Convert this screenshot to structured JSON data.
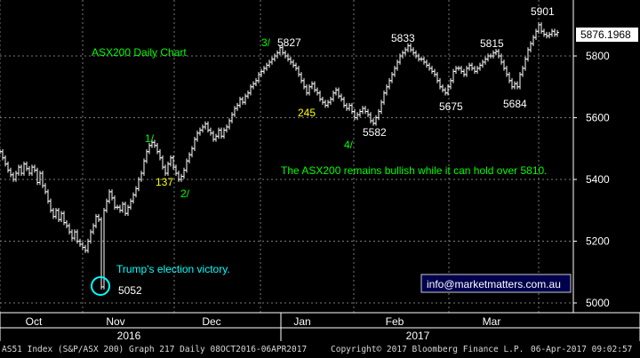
{
  "chart_data": {
    "type": "ohlc-bar",
    "title": "ASX200 Daily Chart",
    "ylim": [
      5000,
      5950
    ],
    "yticks": [
      5000,
      5200,
      5400,
      5600,
      5800
    ],
    "months": [
      "Oct",
      "Nov",
      "Dec",
      "Jan",
      "Feb",
      "Mar"
    ],
    "years": [
      "2016",
      "2017"
    ],
    "last_price": "5876.1968",
    "series": [
      {
        "name": "AS51 Index",
        "values": [
          [
            0,
            5490
          ],
          [
            3,
            5470
          ],
          [
            6,
            5450
          ],
          [
            9,
            5430
          ],
          [
            12,
            5415
          ],
          [
            15,
            5400
          ],
          [
            18,
            5420
          ],
          [
            21,
            5440
          ],
          [
            24,
            5420
          ],
          [
            27,
            5450
          ],
          [
            30,
            5435
          ],
          [
            33,
            5420
          ],
          [
            36,
            5440
          ],
          [
            39,
            5430
          ],
          [
            42,
            5390
          ],
          [
            45,
            5420
          ],
          [
            48,
            5380
          ],
          [
            51,
            5360
          ],
          [
            54,
            5330
          ],
          [
            57,
            5300
          ],
          [
            60,
            5280
          ],
          [
            63,
            5300
          ],
          [
            66,
            5270
          ],
          [
            69,
            5290
          ],
          [
            72,
            5260
          ],
          [
            75,
            5250
          ],
          [
            78,
            5230
          ],
          [
            81,
            5210
          ],
          [
            84,
            5230
          ],
          [
            87,
            5200
          ],
          [
            90,
            5190
          ],
          [
            93,
            5180
          ],
          [
            96,
            5170
          ],
          [
            99,
            5200
          ],
          [
            102,
            5230
          ],
          [
            105,
            5250
          ],
          [
            108,
            5280
          ],
          [
            111,
            5270
          ],
          [
            114,
            5052
          ],
          [
            117,
            5300
          ],
          [
            120,
            5330
          ],
          [
            123,
            5360
          ],
          [
            126,
            5340
          ],
          [
            129,
            5310
          ],
          [
            132,
            5310
          ],
          [
            135,
            5300
          ],
          [
            138,
            5320
          ],
          [
            141,
            5290
          ],
          [
            144,
            5310
          ],
          [
            147,
            5330
          ],
          [
            150,
            5350
          ],
          [
            153,
            5370
          ],
          [
            156,
            5400
          ],
          [
            159,
            5420
          ],
          [
            162,
            5460
          ],
          [
            165,
            5490
          ],
          [
            168,
            5510
          ],
          [
            171,
            5520
          ],
          [
            174,
            5510
          ],
          [
            177,
            5490
          ],
          [
            180,
            5470
          ],
          [
            183,
            5440
          ],
          [
            186,
            5420
          ],
          [
            189,
            5450
          ],
          [
            192,
            5470
          ],
          [
            195,
            5440
          ],
          [
            198,
            5420
          ],
          [
            201,
            5400
          ],
          [
            204,
            5410
          ],
          [
            207,
            5430
          ],
          [
            210,
            5460
          ],
          [
            213,
            5480
          ],
          [
            216,
            5500
          ],
          [
            219,
            5530
          ],
          [
            222,
            5550
          ],
          [
            225,
            5560
          ],
          [
            228,
            5570
          ],
          [
            231,
            5580
          ],
          [
            234,
            5560
          ],
          [
            237,
            5550
          ],
          [
            240,
            5530
          ],
          [
            243,
            5540
          ],
          [
            246,
            5560
          ],
          [
            249,
            5540
          ],
          [
            252,
            5560
          ],
          [
            255,
            5570
          ],
          [
            258,
            5590
          ],
          [
            261,
            5610
          ],
          [
            264,
            5630
          ],
          [
            267,
            5640
          ],
          [
            270,
            5660
          ],
          [
            273,
            5650
          ],
          [
            276,
            5670
          ],
          [
            279,
            5680
          ],
          [
            282,
            5700
          ],
          [
            285,
            5710
          ],
          [
            288,
            5720
          ],
          [
            291,
            5740
          ],
          [
            294,
            5750
          ],
          [
            297,
            5760
          ],
          [
            300,
            5770
          ],
          [
            303,
            5780
          ],
          [
            306,
            5790
          ],
          [
            309,
            5800
          ],
          [
            312,
            5810
          ],
          [
            315,
            5827
          ],
          [
            318,
            5810
          ],
          [
            321,
            5800
          ],
          [
            324,
            5790
          ],
          [
            327,
            5780
          ],
          [
            330,
            5770
          ],
          [
            333,
            5760
          ],
          [
            336,
            5740
          ],
          [
            339,
            5720
          ],
          [
            342,
            5700
          ],
          [
            345,
            5680
          ],
          [
            348,
            5700
          ],
          [
            351,
            5710
          ],
          [
            354,
            5690
          ],
          [
            357,
            5680
          ],
          [
            360,
            5660
          ],
          [
            363,
            5650
          ],
          [
            366,
            5640
          ],
          [
            369,
            5650
          ],
          [
            372,
            5660
          ],
          [
            375,
            5680
          ],
          [
            378,
            5690
          ],
          [
            381,
            5670
          ],
          [
            384,
            5660
          ],
          [
            387,
            5640
          ],
          [
            390,
            5630
          ],
          [
            393,
            5640
          ],
          [
            396,
            5620
          ],
          [
            399,
            5600
          ],
          [
            402,
            5610
          ],
          [
            405,
            5620
          ],
          [
            408,
            5630
          ],
          [
            411,
            5620
          ],
          [
            414,
            5610
          ],
          [
            417,
            5590
          ],
          [
            420,
            5582
          ],
          [
            423,
            5600
          ],
          [
            426,
            5620
          ],
          [
            429,
            5650
          ],
          [
            432,
            5680
          ],
          [
            435,
            5700
          ],
          [
            438,
            5720
          ],
          [
            441,
            5740
          ],
          [
            444,
            5760
          ],
          [
            447,
            5780
          ],
          [
            450,
            5800
          ],
          [
            453,
            5810
          ],
          [
            456,
            5820
          ],
          [
            459,
            5833
          ],
          [
            462,
            5820
          ],
          [
            465,
            5810
          ],
          [
            468,
            5800
          ],
          [
            471,
            5790
          ],
          [
            474,
            5790
          ],
          [
            477,
            5780
          ],
          [
            480,
            5770
          ],
          [
            483,
            5760
          ],
          [
            486,
            5750
          ],
          [
            489,
            5740
          ],
          [
            492,
            5720
          ],
          [
            495,
            5700
          ],
          [
            498,
            5690
          ],
          [
            501,
            5680
          ],
          [
            504,
            5700
          ],
          [
            507,
            5720
          ],
          [
            510,
            5750
          ],
          [
            513,
            5760
          ],
          [
            516,
            5760
          ],
          [
            519,
            5750
          ],
          [
            522,
            5740
          ],
          [
            525,
            5760
          ],
          [
            528,
            5770
          ],
          [
            531,
            5760
          ],
          [
            534,
            5750
          ],
          [
            537,
            5760
          ],
          [
            540,
            5770
          ],
          [
            543,
            5780
          ],
          [
            546,
            5790
          ],
          [
            549,
            5800
          ],
          [
            552,
            5800
          ],
          [
            555,
            5810
          ],
          [
            558,
            5815
          ],
          [
            561,
            5800
          ],
          [
            564,
            5780
          ],
          [
            567,
            5760
          ],
          [
            570,
            5740
          ],
          [
            573,
            5720
          ],
          [
            576,
            5700
          ],
          [
            579,
            5710
          ],
          [
            582,
            5700
          ],
          [
            585,
            5740
          ],
          [
            588,
            5760
          ],
          [
            591,
            5790
          ],
          [
            594,
            5820
          ],
          [
            597,
            5840
          ],
          [
            600,
            5860
          ],
          [
            603,
            5880
          ],
          [
            606,
            5901
          ],
          [
            609,
            5880
          ],
          [
            612,
            5870
          ],
          [
            615,
            5865
          ],
          [
            618,
            5870
          ],
          [
            621,
            5880
          ],
          [
            624,
            5870
          ],
          [
            627,
            5876
          ]
        ]
      }
    ],
    "annotations": {
      "chart_title": "ASX200 Daily Chart",
      "commentary": "The ASX200 remains bullish while it can hold over 5810.",
      "election": "Trump's election victory.",
      "email": "info@marketmatters.com.au",
      "wave_1": "1/",
      "wave_2": "2/",
      "wave_3": "3/",
      "wave_4": "4/",
      "count_137": "137",
      "count_245": "245",
      "level_5052": "5052",
      "level_5827": "5827",
      "level_5833": "5833",
      "level_5815": "5815",
      "level_5901": "5901",
      "level_5582": "5582",
      "level_5675": "5675",
      "level_5684": "5684"
    },
    "colors": {
      "bars": "#ffffff",
      "grid": "#7a7a7a",
      "label_green": "#00ff00",
      "label_yellow": "#ffff00",
      "label_cyan": "#00ffff",
      "label_white": "#ffffff"
    }
  },
  "footer": {
    "left": "AS51 Index (S&P/ASX 200) Graph 217  Daily 08OCT2016-06APR2017",
    "center": "Copyright© 2017 Bloomberg Finance L.P.",
    "right": "06-Apr-2017 09:02:57"
  }
}
